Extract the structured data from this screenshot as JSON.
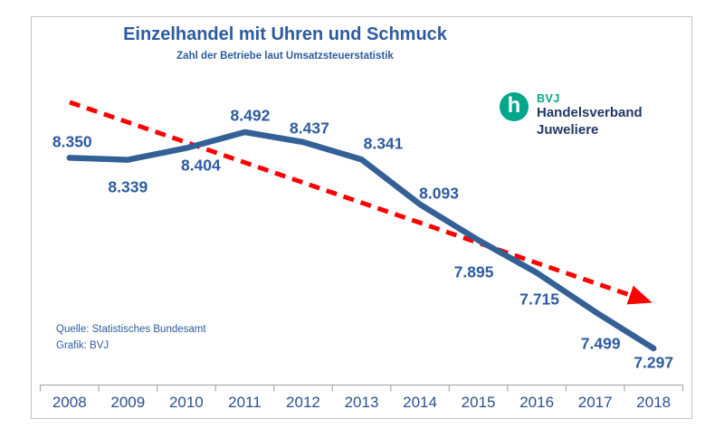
{
  "title": "Einzelhandel mit Uhren und Schmuck",
  "subtitle": "Zahl der Betriebe laut Umsatzsteuerstatistik",
  "source": {
    "line1": "Quelle: Statistisches Bundesamt",
    "line2": "Grafik: BVJ"
  },
  "logo": {
    "mark": "h",
    "abbr": "BVJ",
    "name_line1": "Handelsverband",
    "name_line2": "Juweliere"
  },
  "colors": {
    "accent_blue": "#2c5ba0",
    "year_blue": "#2a518f",
    "line_blue": "#336096",
    "trend_red": "#fe0000",
    "axis_gray": "#ababab",
    "frame_border": "#c4c4c4",
    "logo_green": "#00a78b",
    "logo_navy": "#203864"
  },
  "chart_data": {
    "type": "line",
    "title": "Einzelhandel mit Uhren und Schmuck",
    "subtitle": "Zahl der Betriebe laut Umsatzsteuerstatistik",
    "categories": [
      "2008",
      "2009",
      "2010",
      "2011",
      "2012",
      "2013",
      "2014",
      "2015",
      "2016",
      "2017",
      "2018"
    ],
    "values": [
      8350,
      8339,
      8404,
      8492,
      8437,
      8341,
      8093,
      7895,
      7715,
      7499,
      7297
    ],
    "point_labels": [
      "8.350",
      "8.339",
      "8.404",
      "8.492",
      "8.437",
      "8.341",
      "8.093",
      "7.895",
      "7.715",
      "7.499",
      "7.297"
    ],
    "xlabel": "",
    "ylabel": "",
    "ylim": [
      7200,
      8600
    ],
    "grid": "off",
    "legend": "none",
    "trend": {
      "style": "dashed-arrow",
      "direction": "falling"
    }
  }
}
